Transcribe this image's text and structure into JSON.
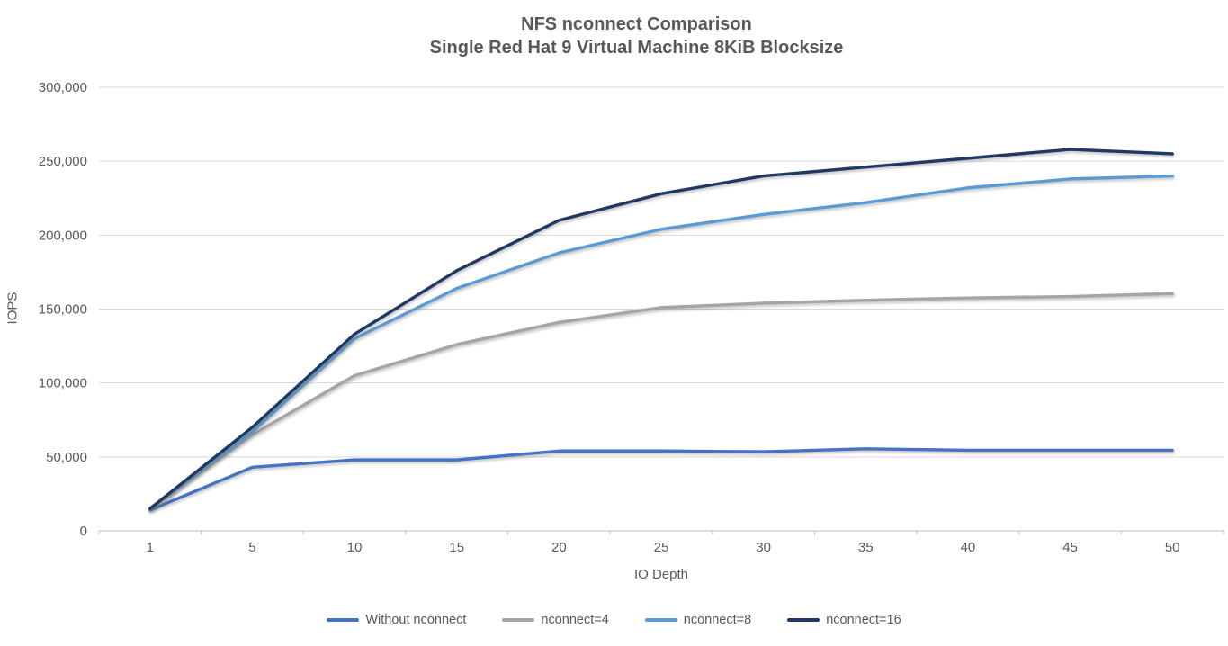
{
  "title": {
    "line1": "NFS nconnect Comparison",
    "line2": "Single Red Hat 9 Virtual Machine 8KiB Blocksize"
  },
  "chart_data": {
    "type": "line",
    "title": "NFS nconnect Comparison — Single Red Hat 9 Virtual Machine 8KiB Blocksize",
    "xlabel": "IO Depth",
    "ylabel": "IOPS",
    "categories": [
      1,
      5,
      10,
      15,
      20,
      25,
      30,
      35,
      40,
      45,
      50
    ],
    "series": [
      {
        "name": "Without nconnect",
        "color": "#4472C4",
        "values": [
          14000,
          43000,
          48000,
          48000,
          54000,
          54000,
          53500,
          55500,
          54500,
          54500,
          54500
        ]
      },
      {
        "name": "nconnect=4",
        "color": "#A5A5A5",
        "values": [
          15000,
          65000,
          105000,
          126000,
          141000,
          151000,
          154000,
          156000,
          157500,
          158500,
          160500
        ]
      },
      {
        "name": "nconnect=8",
        "color": "#5B9BD5",
        "values": [
          15000,
          67000,
          130000,
          164000,
          188000,
          204000,
          214000,
          222000,
          232000,
          238000,
          240000
        ]
      },
      {
        "name": "nconnect=16",
        "color": "#1F3864",
        "values": [
          15000,
          70000,
          133000,
          176000,
          210000,
          228000,
          240000,
          246000,
          252000,
          258000,
          255000
        ]
      }
    ],
    "ylim": [
      0,
      300000
    ],
    "yticks": [
      {
        "value": 0,
        "label": "0"
      },
      {
        "value": 50000,
        "label": "50,000"
      },
      {
        "value": 100000,
        "label": "100,000"
      },
      {
        "value": 150000,
        "label": "150,000"
      },
      {
        "value": 200000,
        "label": "200,000"
      },
      {
        "value": 250000,
        "label": "250,000"
      },
      {
        "value": 300000,
        "label": "300,000"
      }
    ],
    "grid": "horizontal",
    "legend_position": "bottom",
    "colors": {
      "gridline": "#D9D9D9",
      "axis_line": "#BFBFBF",
      "tick_text": "#595959",
      "background": "#FFFFFF"
    }
  }
}
